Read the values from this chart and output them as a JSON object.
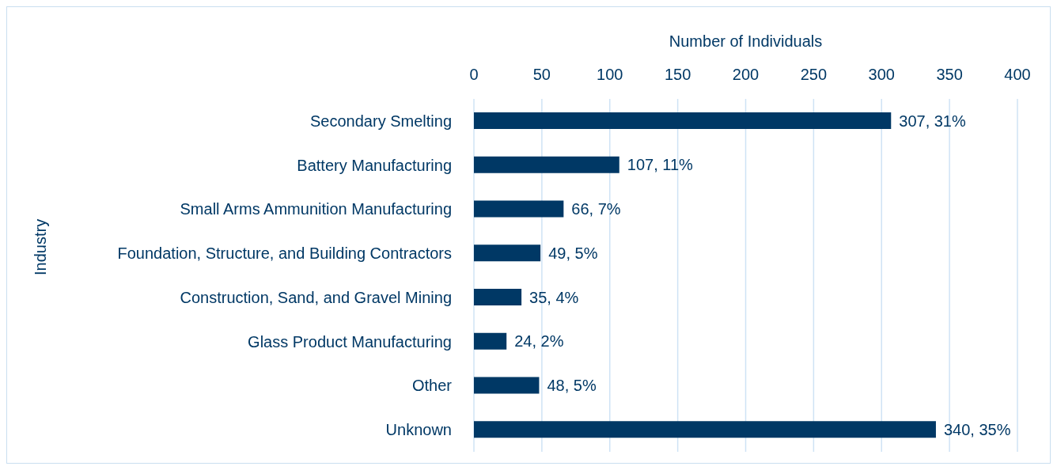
{
  "chart_data": {
    "type": "bar",
    "orientation": "horizontal",
    "xlabel": "Number of Individuals",
    "ylabel": "Industry",
    "categories": [
      "Secondary Smelting",
      "Battery Manufacturing",
      "Small Arms Ammunition Manufacturing",
      "Foundation, Structure, and Building Contractors",
      "Construction, Sand, and Gravel Mining",
      "Glass Product Manufacturing",
      "Other",
      "Unknown"
    ],
    "values": [
      307,
      107,
      66,
      49,
      35,
      24,
      48,
      340
    ],
    "value_labels": [
      "307, 31%",
      "107, 11%",
      "66, 7%",
      "49, 5%",
      "35, 4%",
      "24, 2%",
      "48, 5%",
      "340, 35%"
    ],
    "color": "#003865",
    "xlim": [
      0,
      400
    ],
    "xticks": [
      0,
      50,
      100,
      150,
      200,
      250,
      300,
      350,
      400
    ],
    "grid": "x",
    "legend": false
  }
}
